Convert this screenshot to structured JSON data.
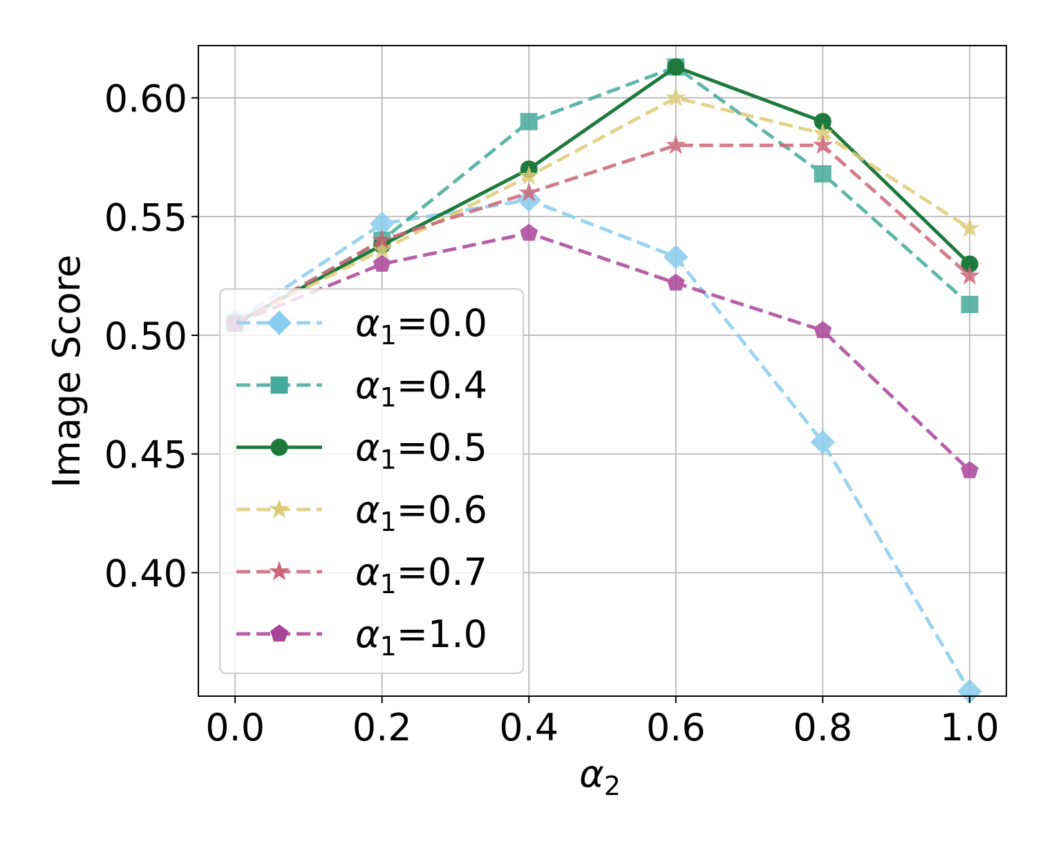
{
  "chart_data": {
    "type": "line",
    "xlabel": "α",
    "xlabel_sub": "2",
    "ylabel": "Image Score",
    "xlim": [
      -0.05,
      1.05
    ],
    "ylim": [
      0.348,
      0.622
    ],
    "xticks": [
      0.0,
      0.2,
      0.4,
      0.6,
      0.8,
      1.0
    ],
    "xtick_labels": [
      "0.0",
      "0.2",
      "0.4",
      "0.6",
      "0.8",
      "1.0"
    ],
    "yticks": [
      0.4,
      0.45,
      0.5,
      0.55,
      0.6
    ],
    "ytick_labels": [
      "0.40",
      "0.45",
      "0.50",
      "0.55",
      "0.60"
    ],
    "grid": true,
    "legend_position": "lower-left",
    "x": [
      0.0,
      0.2,
      0.4,
      0.6,
      0.8,
      1.0
    ],
    "series": [
      {
        "name": "α1=0.0",
        "label_main": "α",
        "label_sub": "1",
        "label_rest": "=0.0",
        "color": "#88CCEE",
        "dash": "dashed",
        "marker": "diamond",
        "values": [
          0.506,
          0.547,
          0.557,
          0.533,
          0.455,
          0.35
        ]
      },
      {
        "name": "α1=0.4",
        "label_main": "α",
        "label_sub": "1",
        "label_rest": "=0.4",
        "color": "#44AA99",
        "dash": "dashed",
        "marker": "square",
        "values": [
          0.505,
          0.54,
          0.59,
          0.613,
          0.568,
          0.513
        ]
      },
      {
        "name": "α1=0.5",
        "label_main": "α",
        "label_sub": "1",
        "label_rest": "=0.5",
        "color": "#1E7A3C",
        "dash": "solid",
        "marker": "circle",
        "values": [
          0.505,
          0.538,
          0.57,
          0.613,
          0.59,
          0.53
        ]
      },
      {
        "name": "α1=0.6",
        "label_main": "α",
        "label_sub": "1",
        "label_rest": "=0.6",
        "color": "#DDCC77",
        "dash": "dashed",
        "marker": "star",
        "values": [
          0.505,
          0.536,
          0.567,
          0.6,
          0.585,
          0.545
        ]
      },
      {
        "name": "α1=0.7",
        "label_main": "α",
        "label_sub": "1",
        "label_rest": "=0.7",
        "color": "#CC6677",
        "dash": "dashed",
        "marker": "star",
        "values": [
          0.505,
          0.54,
          0.56,
          0.58,
          0.58,
          0.525
        ]
      },
      {
        "name": "α1=1.0",
        "label_main": "α",
        "label_sub": "1",
        "label_rest": "=1.0",
        "color": "#AA4499",
        "dash": "dashed",
        "marker": "pentagon",
        "values": [
          0.505,
          0.53,
          0.543,
          0.522,
          0.502,
          0.443
        ]
      }
    ]
  }
}
